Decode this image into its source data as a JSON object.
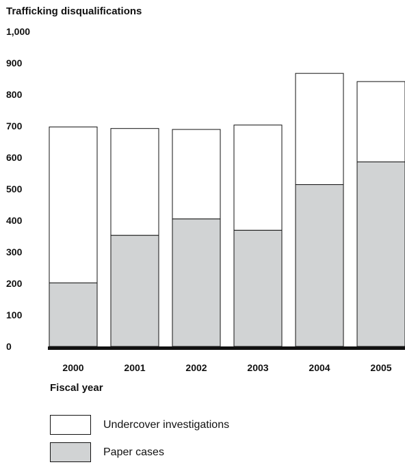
{
  "chart_data": {
    "type": "bar",
    "stacked": true,
    "ylabel": "Trafficking disqualifications",
    "xlabel": "Fiscal year",
    "categories": [
      "2000",
      "2001",
      "2002",
      "2003",
      "2004",
      "2005"
    ],
    "series": [
      {
        "name": "Paper cases",
        "values": [
          202,
          353,
          405,
          369,
          514,
          586
        ],
        "color": "#d1d3d4"
      },
      {
        "name": "Undercover investigations",
        "values": [
          495,
          339,
          284,
          334,
          353,
          255
        ],
        "color": "#ffffff"
      }
    ],
    "ylim": [
      0,
      1000
    ],
    "yticks": [
      "0",
      "100",
      "200",
      "300",
      "400",
      "500",
      "600",
      "700",
      "800",
      "900",
      "1,000"
    ],
    "grid": false,
    "legend_position": "bottom-left"
  }
}
